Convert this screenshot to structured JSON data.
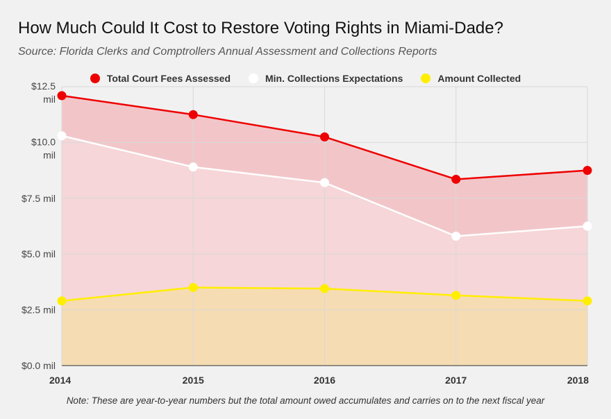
{
  "header": {
    "title": "How Much Could It Cost to Restore Voting Rights in Miami-Dade?",
    "subtitle": "Source: Florida Clerks and Comptrollers Annual Assessment and Collections Reports"
  },
  "note": "Note: These are year-to-year numbers but the total amount owed accumulates and carries on to the next fiscal year",
  "colors": {
    "background": "#f1f1f1",
    "red": "#ee0000",
    "white": "#ffffff",
    "yellow": "#ffee00",
    "red_area": "#f2c6c9",
    "pink_area": "#f6d6d8",
    "yellow_area": "#f6dcb3",
    "grid": "#d8d8d8"
  },
  "chart_data": {
    "type": "area",
    "title": "How Much Could It Cost to Restore Voting Rights in Miami-Dade?",
    "subtitle": "Source: Florida Clerks and Comptrollers Annual Assessment and Collections Reports",
    "x": [
      "2014",
      "2015",
      "2016",
      "2017",
      "2018"
    ],
    "xlabel": "",
    "ylabel": "",
    "ylim": [
      0,
      12.5
    ],
    "y_ticks": [
      {
        "value": 0,
        "lines": [
          "$0.0 mil"
        ]
      },
      {
        "value": 2.5,
        "lines": [
          "$2.5 mil"
        ]
      },
      {
        "value": 5.0,
        "lines": [
          "$5.0 mil"
        ]
      },
      {
        "value": 7.5,
        "lines": [
          "$7.5 mil"
        ]
      },
      {
        "value": 10.0,
        "lines": [
          "$10.0",
          "mil"
        ]
      },
      {
        "value": 12.5,
        "lines": [
          "$12.5",
          "mil"
        ]
      }
    ],
    "grid": true,
    "legend_position": "top-center",
    "series": [
      {
        "name": "Total Court Fees Assessed",
        "color": "#ee0000",
        "values": [
          12.1,
          11.25,
          10.25,
          8.35,
          8.75
        ]
      },
      {
        "name": "Min. Collections Expectations",
        "color": "#ffffff",
        "values": [
          10.3,
          8.9,
          8.2,
          5.8,
          6.25
        ]
      },
      {
        "name": "Amount Collected",
        "color": "#ffee00",
        "values": [
          2.9,
          3.5,
          3.45,
          3.15,
          2.9
        ]
      }
    ]
  }
}
